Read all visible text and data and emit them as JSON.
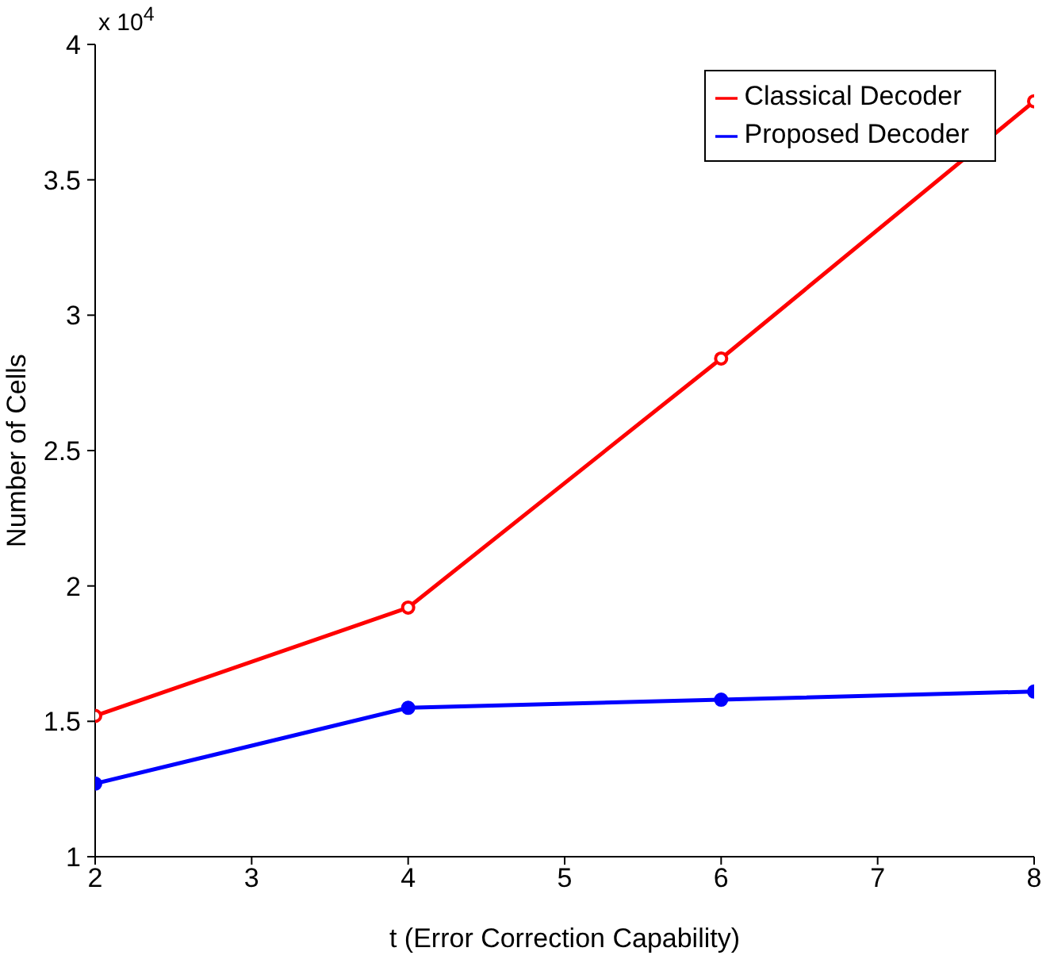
{
  "chart_data": {
    "type": "line",
    "xlabel": "t (Error Correction Capability)",
    "ylabel": "Number of Cells",
    "annotations": [
      "x 10$^{4}$"
    ],
    "x": [
      2,
      4,
      6,
      8
    ],
    "series": [
      {
        "name": "Classical Decoder",
        "color": "#ff0000",
        "values": [
          1.52,
          1.92,
          2.84,
          3.79
        ]
      },
      {
        "name": "Proposed Decoder",
        "color": "#0000ff",
        "values": [
          1.27,
          1.55,
          1.58,
          1.61
        ]
      }
    ],
    "xlim": [
      2,
      8
    ],
    "xticks": [
      2,
      3,
      4,
      5,
      6,
      7,
      8
    ],
    "ylim": [
      1,
      4
    ],
    "yticks": [
      1,
      1.5,
      2,
      2.5,
      3,
      3.5,
      4
    ],
    "grid": false,
    "legend": "top right",
    "marker": "circle",
    "line_style": "solid"
  }
}
